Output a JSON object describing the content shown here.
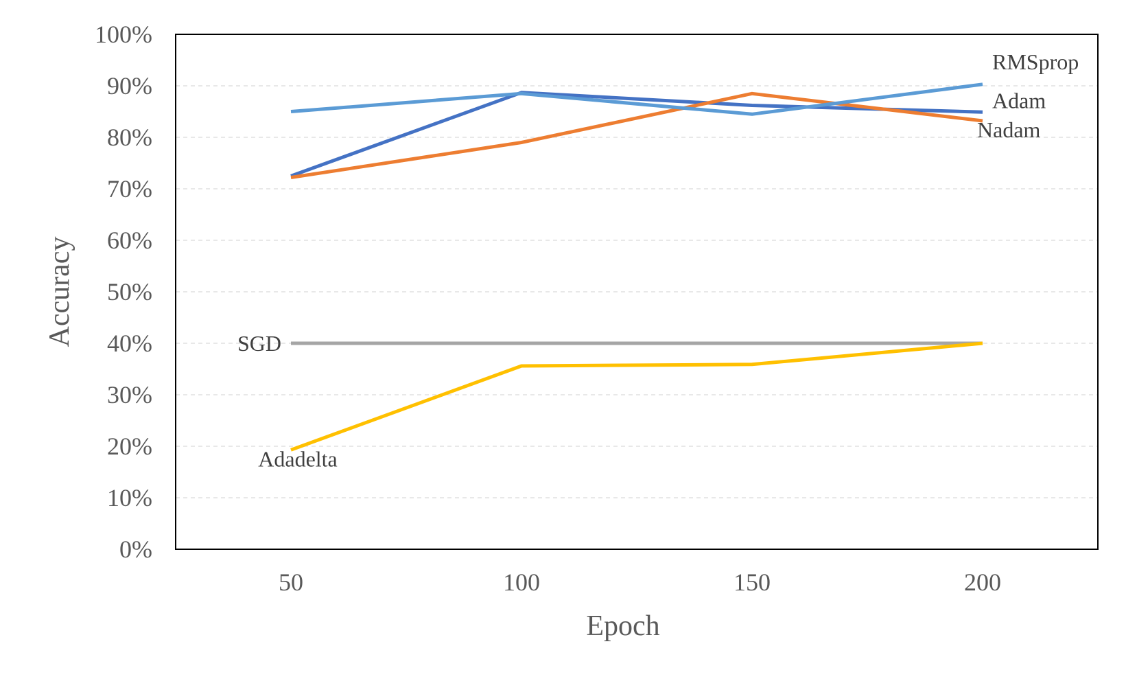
{
  "chart_data": {
    "type": "line",
    "title": "",
    "xlabel": "Epoch",
    "ylabel": "Accuracy",
    "categories": [
      "50",
      "100",
      "150",
      "200"
    ],
    "x": [
      50,
      100,
      150,
      200
    ],
    "xlim": [
      25,
      225
    ],
    "ylim": [
      0,
      1
    ],
    "y_ticks": [
      "0%",
      "10%",
      "20%",
      "30%",
      "40%",
      "50%",
      "60%",
      "70%",
      "80%",
      "90%",
      "100%"
    ],
    "y_format": "percent",
    "grid": "horizontal-dashed",
    "legend": "inline-labels",
    "series": [
      {
        "name": "RMSprop",
        "color": "#5b9bd5",
        "values": [
          0.85,
          0.885,
          0.845,
          0.903
        ],
        "label_at": "end-above"
      },
      {
        "name": "Adam",
        "color": "#4472c4",
        "values": [
          0.725,
          0.887,
          0.862,
          0.849
        ],
        "label_at": "end-right"
      },
      {
        "name": "Nadam",
        "color": "#ed7d31",
        "values": [
          0.722,
          0.79,
          0.885,
          0.832
        ],
        "label_at": "end-below"
      },
      {
        "name": "SGD",
        "color": "#a5a5a5",
        "values": [
          0.4,
          0.4,
          0.4,
          0.4
        ],
        "label_at": "start-left"
      },
      {
        "name": "Adadelta",
        "color": "#ffc000",
        "values": [
          0.193,
          0.356,
          0.359,
          0.4
        ],
        "label_at": "start-below"
      }
    ]
  }
}
